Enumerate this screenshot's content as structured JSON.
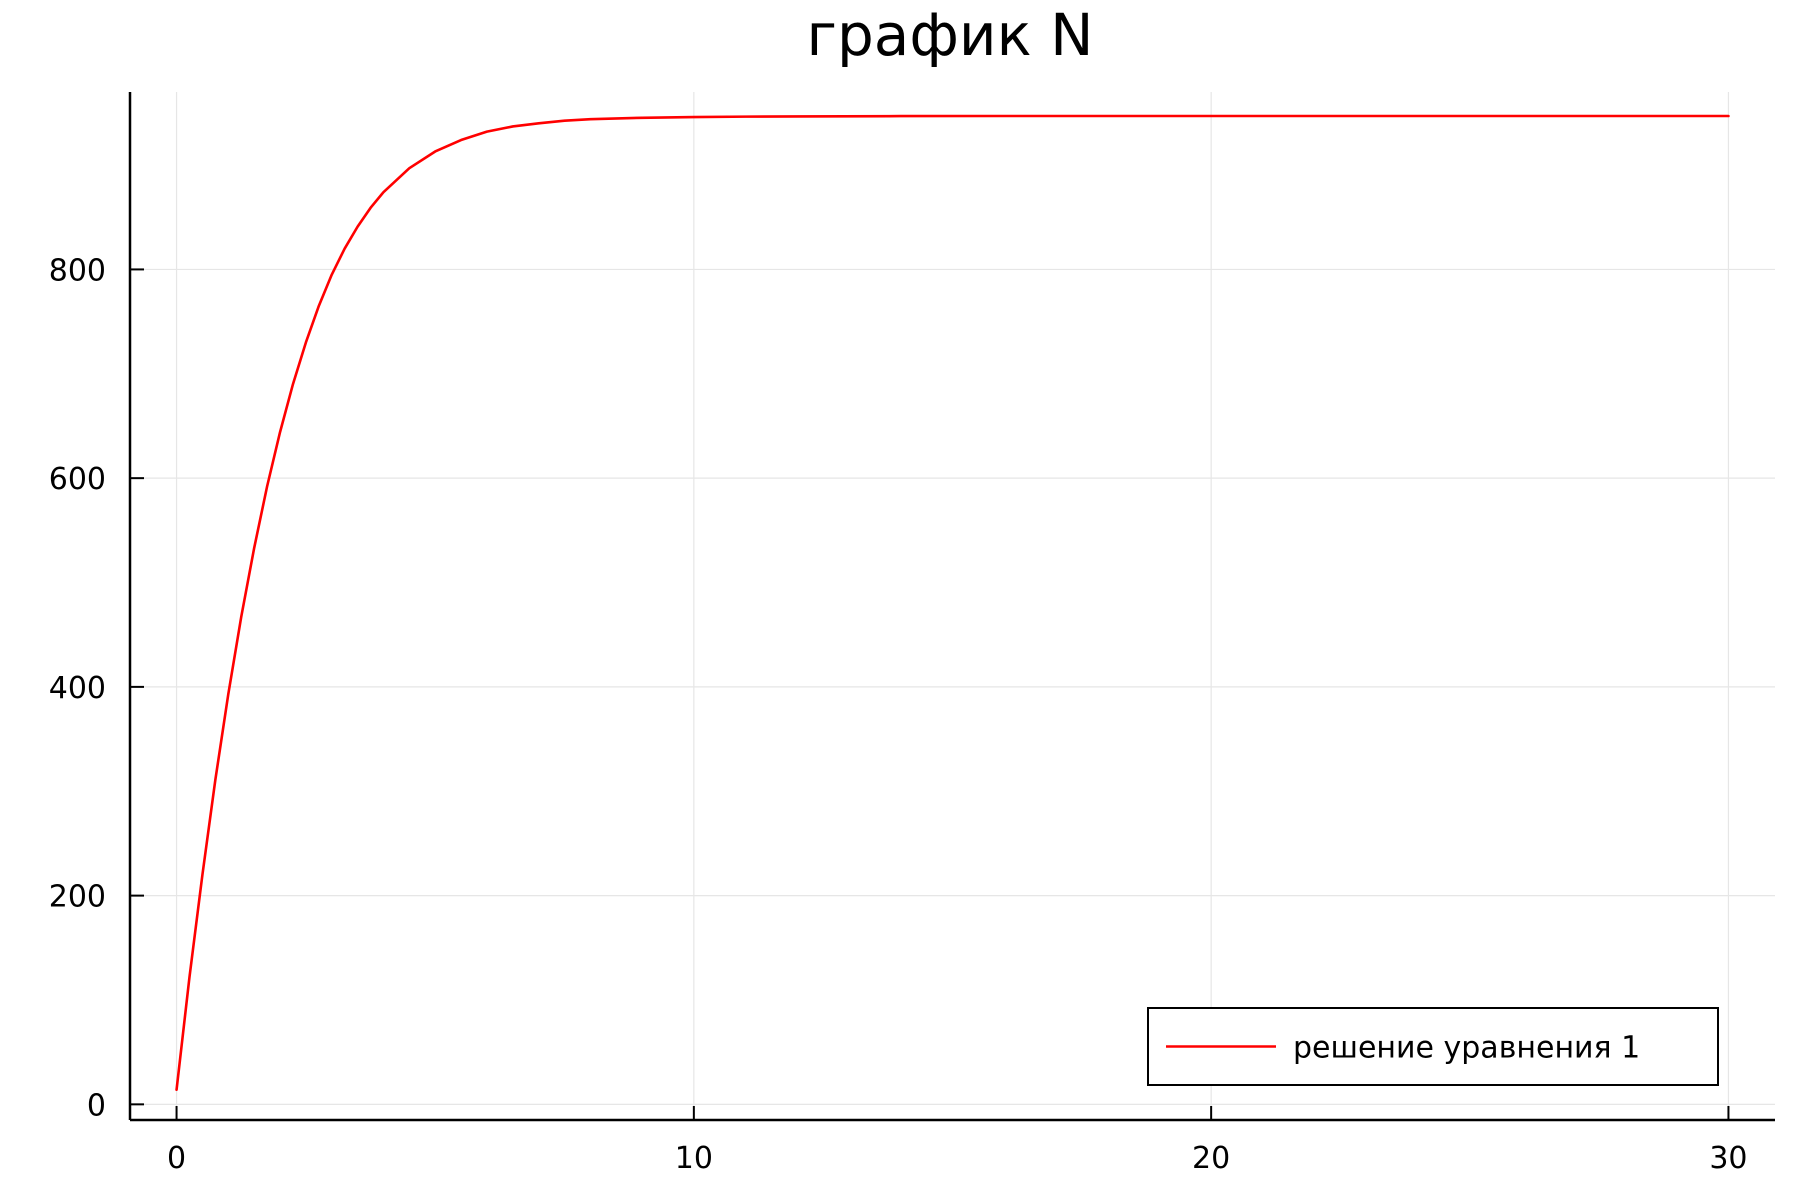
{
  "chart_data": {
    "type": "line",
    "title": "график N",
    "xlabel": "",
    "ylabel": "",
    "xlim": [
      -0.9,
      30.9
    ],
    "ylim": [
      -15,
      970
    ],
    "x_ticks": [
      {
        "value": 0,
        "label": "0"
      },
      {
        "value": 10,
        "label": "10"
      },
      {
        "value": 20,
        "label": "20"
      },
      {
        "value": 30,
        "label": "30"
      }
    ],
    "y_ticks": [
      {
        "value": 0,
        "label": "0"
      },
      {
        "value": 200,
        "label": "200"
      },
      {
        "value": 400,
        "label": "400"
      },
      {
        "value": 600,
        "label": "600"
      },
      {
        "value": 800,
        "label": "800"
      }
    ],
    "grid": true,
    "legend_position": "bottom-right",
    "series": [
      {
        "name": "решение уравнения 1",
        "color": "#ff0000",
        "x": [
          0,
          0.25,
          0.5,
          0.75,
          1,
          1.25,
          1.5,
          1.75,
          2,
          2.25,
          2.5,
          2.75,
          3,
          3.25,
          3.5,
          3.75,
          4,
          4.5,
          5,
          5.5,
          6,
          6.5,
          7,
          7.5,
          8,
          9,
          10,
          11,
          12,
          14,
          16,
          18,
          20,
          22,
          24,
          26,
          28,
          30
        ],
        "y": [
          14,
          122,
          220,
          311,
          393,
          467,
          533,
          592,
          644,
          690,
          730,
          765,
          795,
          820,
          841,
          859,
          874,
          897,
          913,
          924,
          932,
          937,
          940,
          942.5,
          944,
          945.3,
          946,
          946.4,
          946.6,
          946.9,
          947,
          947,
          947,
          947,
          947,
          947,
          947,
          947
        ]
      }
    ]
  }
}
